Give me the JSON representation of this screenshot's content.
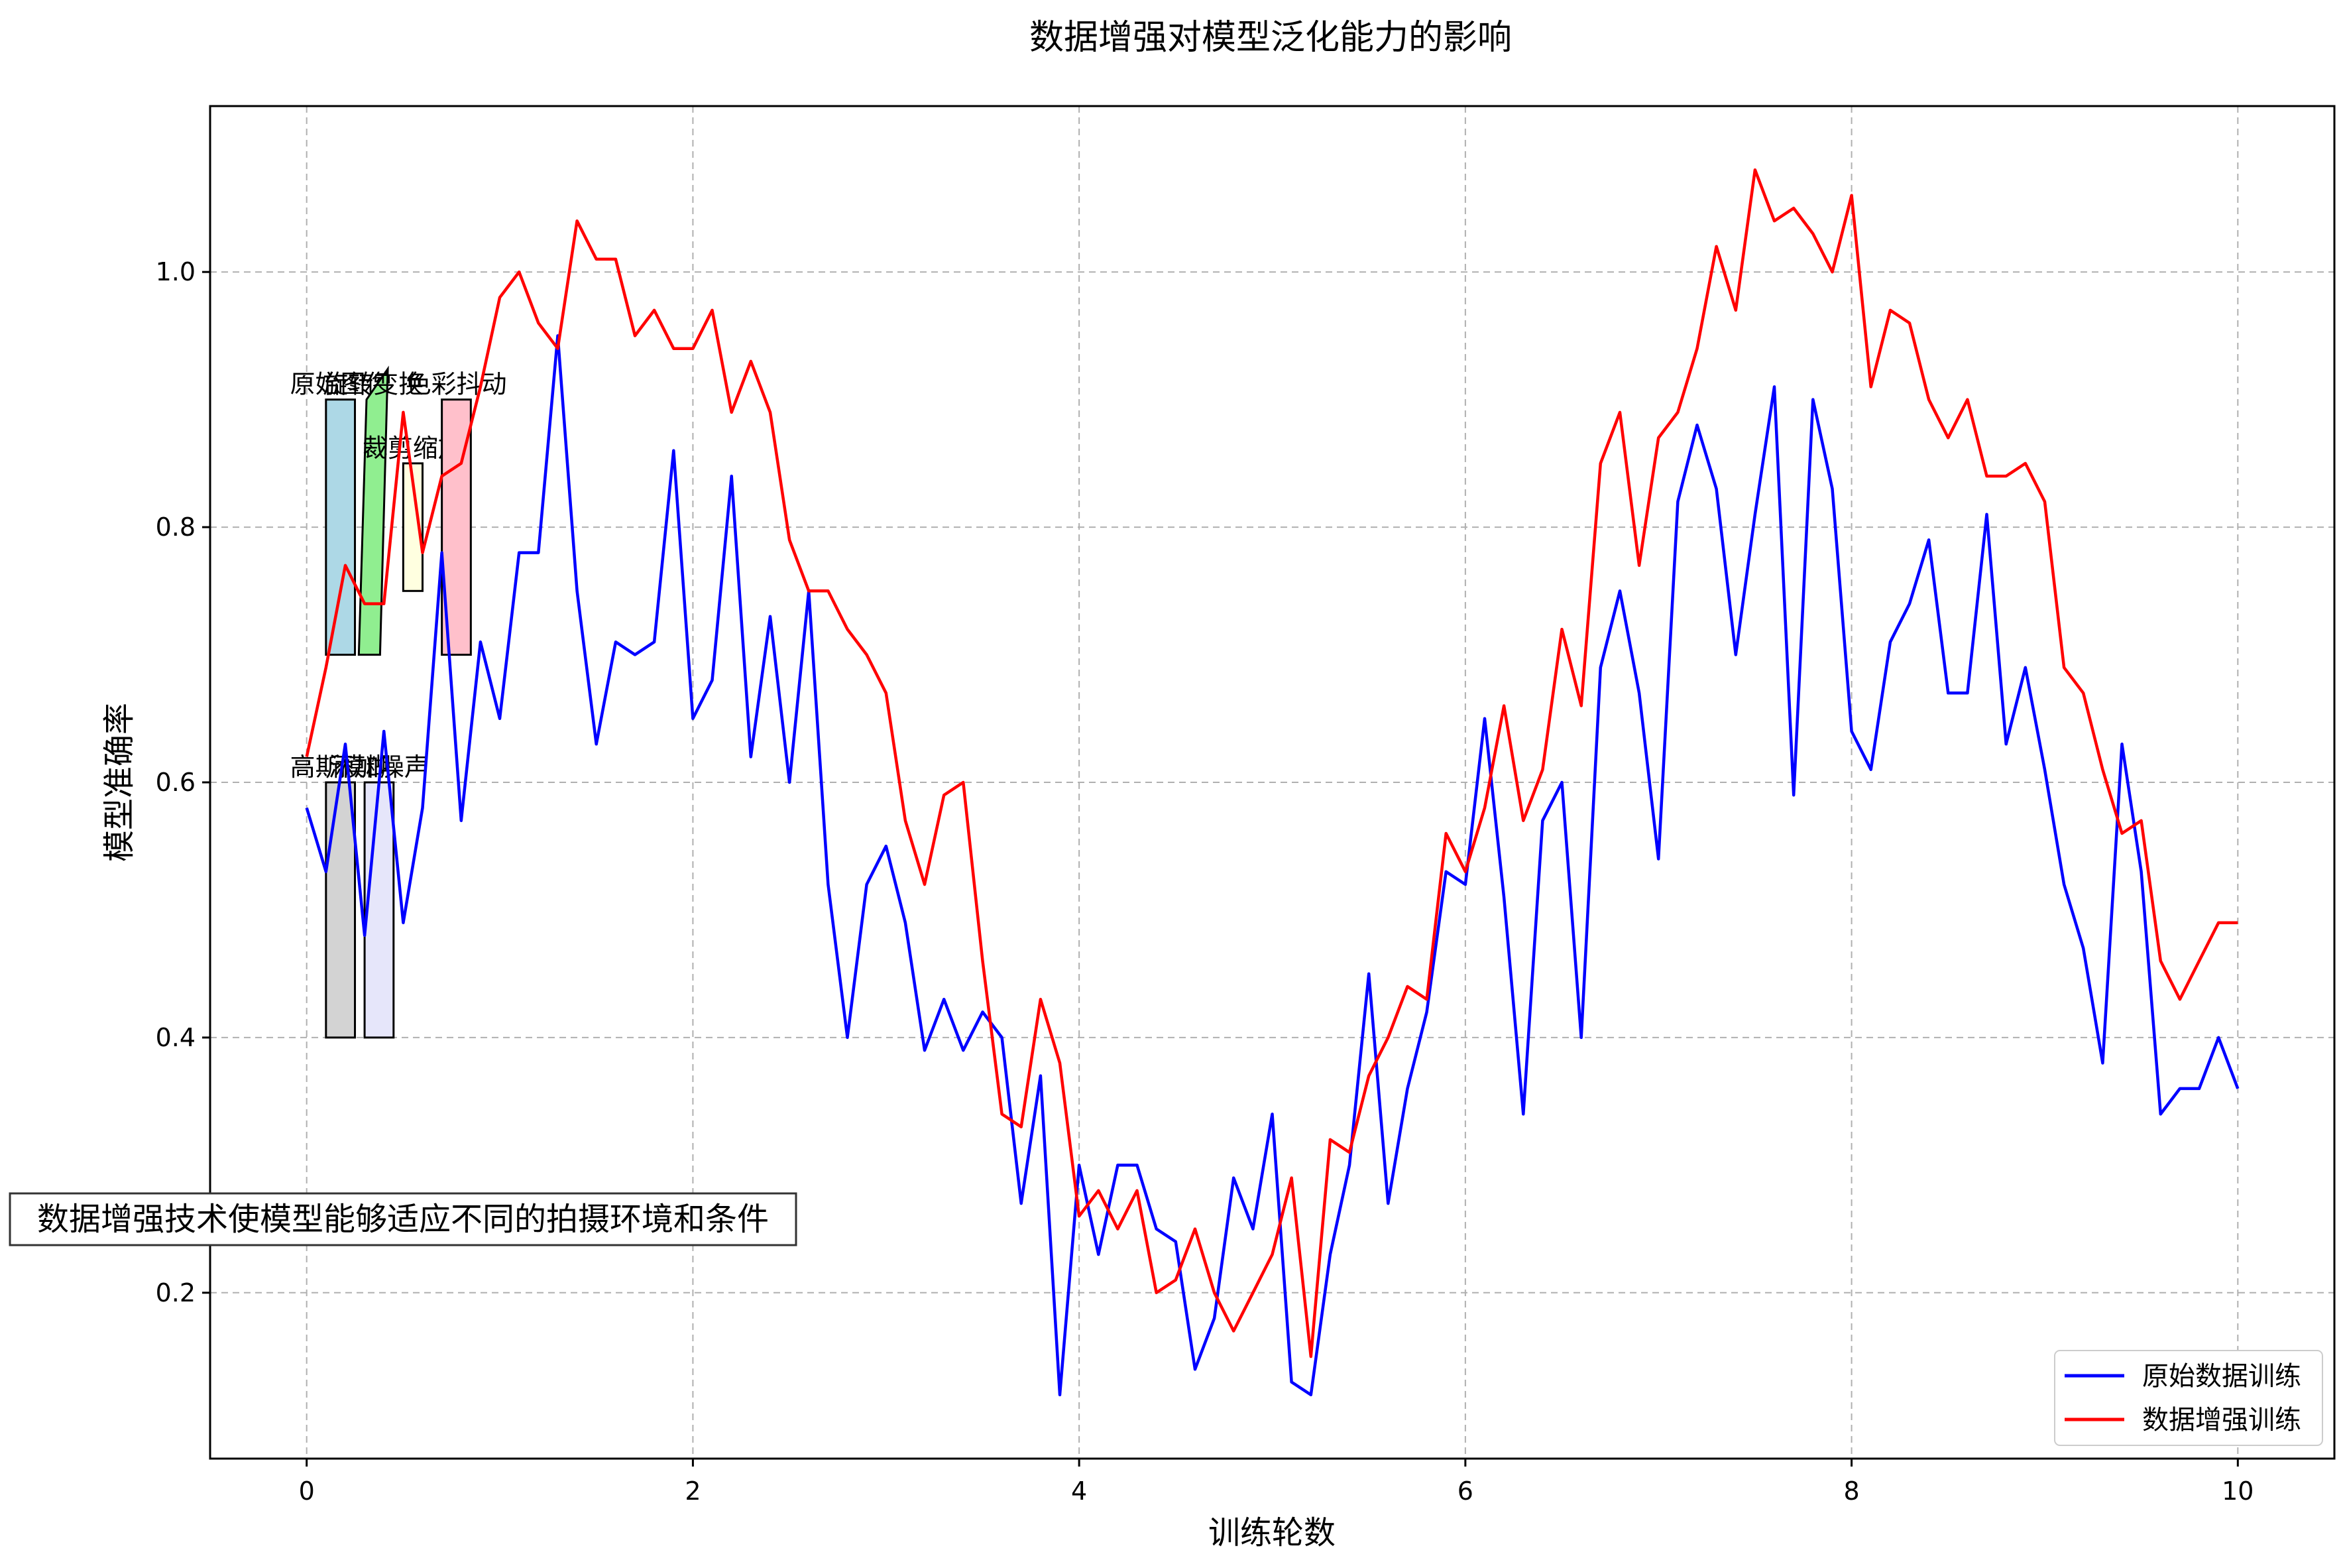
{
  "chart_data": {
    "type": "line",
    "title": "数据增强对模型泛化能力的影响",
    "xlabel": "训练轮数",
    "ylabel": "模型准确率",
    "xlim": [
      -0.5,
      10.5
    ],
    "ylim": [
      0.07,
      1.13
    ],
    "x_ticks": [
      0,
      2,
      4,
      6,
      8,
      10
    ],
    "y_ticks": [
      0.2,
      0.4,
      0.6,
      0.8,
      1.0
    ],
    "x_tick_labels": [
      "0",
      "2",
      "4",
      "6",
      "8",
      "10"
    ],
    "y_tick_labels": [
      "0.2",
      "0.4",
      "0.6",
      "0.8",
      "1.0"
    ],
    "grid": true,
    "legend_position": "lower-right",
    "x": [
      0.0,
      0.1,
      0.2,
      0.3,
      0.4,
      0.5,
      0.6,
      0.7,
      0.8,
      0.9,
      1.0,
      1.1,
      1.2,
      1.3,
      1.4,
      1.5,
      1.6,
      1.7,
      1.8,
      1.9,
      2.0,
      2.1,
      2.2,
      2.3,
      2.4,
      2.5,
      2.6,
      2.7,
      2.8,
      2.9,
      3.0,
      3.1,
      3.2,
      3.3,
      3.4,
      3.5,
      3.6,
      3.7,
      3.8,
      3.9,
      4.0,
      4.1,
      4.2,
      4.3,
      4.4,
      4.5,
      4.6,
      4.7,
      4.8,
      4.9,
      5.0,
      5.1,
      5.2,
      5.3,
      5.4,
      5.5,
      5.6,
      5.7,
      5.8,
      5.9,
      6.0,
      6.1,
      6.2,
      6.3,
      6.4,
      6.5,
      6.6,
      6.7,
      6.8,
      6.9,
      7.0,
      7.1,
      7.2,
      7.3,
      7.4,
      7.5,
      7.6,
      7.7,
      7.8,
      7.9,
      8.0,
      8.1,
      8.2,
      8.3,
      8.4,
      8.5,
      8.6,
      8.7,
      8.8,
      8.9,
      9.0,
      9.1,
      9.2,
      9.3,
      9.4,
      9.5,
      9.6,
      9.7,
      9.8,
      9.9,
      10.0
    ],
    "series": [
      {
        "name": "原始数据训练",
        "color": "#0000ff",
        "values": [
          0.58,
          0.53,
          0.63,
          0.48,
          0.64,
          0.49,
          0.58,
          0.78,
          0.57,
          0.71,
          0.65,
          0.78,
          0.78,
          0.95,
          0.75,
          0.63,
          0.71,
          0.7,
          0.71,
          0.86,
          0.65,
          0.68,
          0.84,
          0.62,
          0.73,
          0.6,
          0.75,
          0.52,
          0.4,
          0.52,
          0.55,
          0.49,
          0.39,
          0.43,
          0.39,
          0.42,
          0.4,
          0.27,
          0.37,
          0.12,
          0.3,
          0.23,
          0.3,
          0.3,
          0.25,
          0.24,
          0.14,
          0.18,
          0.29,
          0.25,
          0.34,
          0.13,
          0.12,
          0.23,
          0.3,
          0.45,
          0.27,
          0.36,
          0.42,
          0.53,
          0.52,
          0.65,
          0.51,
          0.34,
          0.57,
          0.6,
          0.4,
          0.69,
          0.75,
          0.67,
          0.54,
          0.82,
          0.88,
          0.83,
          0.7,
          0.81,
          0.91,
          0.59,
          0.9,
          0.83,
          0.64,
          0.61,
          0.71,
          0.74,
          0.79,
          0.67,
          0.67,
          0.81,
          0.63,
          0.69,
          0.61,
          0.52,
          0.47,
          0.38,
          0.63,
          0.53,
          0.34,
          0.36,
          0.36,
          0.4,
          0.36
        ]
      },
      {
        "name": "数据增强训练",
        "color": "#ff0000",
        "values": [
          0.62,
          0.69,
          0.77,
          0.74,
          0.74,
          0.89,
          0.78,
          0.84,
          0.85,
          0.91,
          0.98,
          1.0,
          0.96,
          0.94,
          1.04,
          1.01,
          1.01,
          0.95,
          0.97,
          0.94,
          0.94,
          0.97,
          0.89,
          0.93,
          0.89,
          0.79,
          0.75,
          0.75,
          0.72,
          0.7,
          0.67,
          0.57,
          0.52,
          0.59,
          0.6,
          0.46,
          0.34,
          0.33,
          0.43,
          0.38,
          0.26,
          0.28,
          0.25,
          0.28,
          0.2,
          0.21,
          0.25,
          0.2,
          0.17,
          0.2,
          0.23,
          0.29,
          0.15,
          0.32,
          0.31,
          0.37,
          0.4,
          0.44,
          0.43,
          0.56,
          0.53,
          0.58,
          0.66,
          0.57,
          0.61,
          0.72,
          0.66,
          0.85,
          0.89,
          0.77,
          0.87,
          0.89,
          0.94,
          1.02,
          0.97,
          1.08,
          1.04,
          1.05,
          1.03,
          1.0,
          1.06,
          0.91,
          0.97,
          0.96,
          0.9,
          0.87,
          0.9,
          0.84,
          0.84,
          0.85,
          0.82,
          0.69,
          0.67,
          0.61,
          0.56,
          0.57,
          0.46,
          0.43,
          0.46,
          0.49,
          0.49
        ]
      }
    ],
    "overlays": [
      {
        "label": "原始图像",
        "shape": "rect",
        "x0": 0.1,
        "x1": 0.25,
        "y0": 0.7,
        "y1": 0.9,
        "fill": "#add8e6"
      },
      {
        "label": "旋转变换",
        "shape": "parallelogram",
        "x0": 0.27,
        "x1": 0.42,
        "y0": 0.7,
        "y1": 0.9,
        "skew": 0.04,
        "fill": "#90ee90"
      },
      {
        "label": "裁剪缩放",
        "shape": "rect",
        "x0": 0.5,
        "x1": 0.6,
        "y0": 0.75,
        "y1": 0.85,
        "fill": "#ffffe0"
      },
      {
        "label": "色彩抖动",
        "shape": "rect",
        "x0": 0.7,
        "x1": 0.85,
        "y0": 0.7,
        "y1": 0.9,
        "fill": "#ffc0cb"
      },
      {
        "label": "高斯模糊",
        "shape": "rect",
        "x0": 0.1,
        "x1": 0.25,
        "y0": 0.4,
        "y1": 0.6,
        "fill": "#d3d3d3"
      },
      {
        "label": "添加噪声",
        "shape": "rect",
        "x0": 0.3,
        "x1": 0.45,
        "y0": 0.4,
        "y1": 0.6,
        "fill": "#e6e6fa"
      }
    ],
    "annotation": "数据增强技术使模型能够适应不同的拍摄环境和条件"
  }
}
